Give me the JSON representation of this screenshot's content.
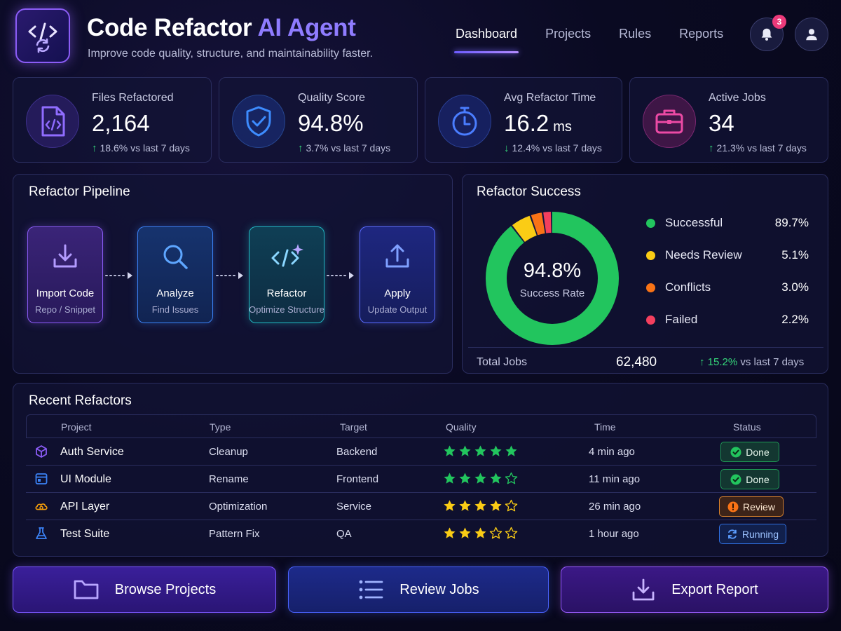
{
  "header": {
    "title_main": "Code Refactor ",
    "title_accent": "AI Agent",
    "subtitle": "Improve code quality, structure, and maintainability faster.",
    "logo_icon": "code-refresh-icon",
    "notifications_count": "3"
  },
  "nav": {
    "items": [
      {
        "label": "Dashboard",
        "active": true
      },
      {
        "label": "Projects",
        "active": false
      },
      {
        "label": "Rules",
        "active": false
      },
      {
        "label": "Reports",
        "active": false
      }
    ]
  },
  "stats": [
    {
      "label": "Files Refactored",
      "value": "2,164",
      "unit": "",
      "delta": "18.6% vs last 7 days",
      "direction": "up",
      "icon": "file-code-icon",
      "color": "#7c5cff"
    },
    {
      "label": "Quality Score",
      "value": "94.8%",
      "unit": "",
      "delta": "3.7% vs last 7 days",
      "direction": "up",
      "icon": "shield-check-icon",
      "color": "#3b8cff"
    },
    {
      "label": "Avg Refactor Time",
      "value": "16.2",
      "unit": "ms",
      "delta": "12.4% vs last 7 days",
      "direction": "down",
      "icon": "stopwatch-icon",
      "color": "#4a7dff"
    },
    {
      "label": "Active Jobs",
      "value": "34",
      "unit": "",
      "delta": "21.3% vs last 7 days",
      "direction": "up",
      "icon": "briefcase-icon",
      "color": "#e0409a"
    }
  ],
  "pipeline": {
    "title": "Refactor Pipeline",
    "steps": [
      {
        "name": "Import Code",
        "sub": "Repo / Snippet",
        "icon": "download-icon",
        "color": "#8b5cf6"
      },
      {
        "name": "Analyze",
        "sub": "Find Issues",
        "icon": "search-icon",
        "color": "#3b82f6"
      },
      {
        "name": "Refactor",
        "sub": "Optimize Structure",
        "icon": "code-sparkle-icon",
        "color": "#22b8c4"
      },
      {
        "name": "Apply",
        "sub": "Update Output",
        "icon": "upload-icon",
        "color": "#5b6cff"
      }
    ]
  },
  "success": {
    "title": "Refactor Success",
    "center_value": "94.8%",
    "center_label": "Success Rate",
    "total_label": "Total Jobs",
    "total_value": "62,480",
    "total_delta": "15.2%",
    "total_delta_suffix": "vs last 7 days",
    "legend": [
      {
        "name": "Successful",
        "value": "89.7%",
        "color": "#22c55e"
      },
      {
        "name": "Needs Review",
        "value": "5.1%",
        "color": "#facc15"
      },
      {
        "name": "Conflicts",
        "value": "3.0%",
        "color": "#f97316"
      },
      {
        "name": "Failed",
        "value": "2.2%",
        "color": "#f43f5e"
      }
    ]
  },
  "chart_data": {
    "type": "pie",
    "categories": [
      "Successful",
      "Needs Review",
      "Conflicts",
      "Failed"
    ],
    "values": [
      89.7,
      5.1,
      3.0,
      2.2
    ],
    "title": "Refactor Success"
  },
  "recent": {
    "title": "Recent Refactors",
    "columns": [
      "Project",
      "Type",
      "Target",
      "Quality",
      "Time",
      "Status"
    ],
    "rows": [
      {
        "project": "Auth Service",
        "type": "Cleanup",
        "target": "Backend",
        "stars": 5,
        "star_color": "#22c55e",
        "time": "4 min ago",
        "status": "Done",
        "status_kind": "done",
        "icon": "cube-icon",
        "icon_color": "#8b5cf6"
      },
      {
        "project": "UI Module",
        "type": "Rename",
        "target": "Frontend",
        "stars": 4,
        "star_color": "#22c55e",
        "time": "11 min ago",
        "status": "Done",
        "status_kind": "done",
        "icon": "window-icon",
        "icon_color": "#3b82f6"
      },
      {
        "project": "API Layer",
        "type": "Optimization",
        "target": "Service",
        "stars": 4,
        "star_color": "#facc15",
        "time": "26 min ago",
        "status": "Review",
        "status_kind": "review",
        "icon": "gear-cloud-icon",
        "icon_color": "#f59e0b"
      },
      {
        "project": "Test Suite",
        "type": "Pattern Fix",
        "target": "QA",
        "stars": 3,
        "star_color": "#facc15",
        "time": "1 hour ago",
        "status": "Running",
        "status_kind": "running",
        "icon": "flask-icon",
        "icon_color": "#3b82f6"
      }
    ]
  },
  "actions": [
    {
      "label": "Browse Projects",
      "icon": "folder-icon"
    },
    {
      "label": "Review Jobs",
      "icon": "list-icon"
    },
    {
      "label": "Export Report",
      "icon": "download-icon"
    }
  ]
}
